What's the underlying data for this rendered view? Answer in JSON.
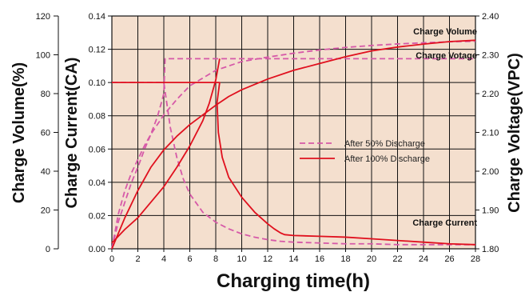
{
  "chart_data": {
    "type": "line",
    "xlabel": "Charging time(h)",
    "x_ticks": [
      "0",
      "2",
      "4",
      "6",
      "8",
      "10",
      "12",
      "14",
      "16",
      "18",
      "20",
      "22",
      "24",
      "26",
      "28"
    ],
    "xlim": [
      0,
      28
    ],
    "y_axes": [
      {
        "label": "Charge Volume(%)",
        "ticks": [
          "0",
          "20",
          "40",
          "60",
          "80",
          "100",
          "120"
        ],
        "lim": [
          0,
          120
        ]
      },
      {
        "label": "Charge Current(CA)",
        "ticks": [
          "0.00",
          "0.02",
          "0.04",
          "0.06",
          "0.08",
          "0.10",
          "0.12",
          "0.14"
        ],
        "lim": [
          0,
          0.14
        ]
      },
      {
        "label": "Charge Voltage(VPC)",
        "ticks": [
          "1.80",
          "1.90",
          "2.00",
          "2.10",
          "2.20",
          "2.30",
          "2.40"
        ],
        "lim": [
          1.8,
          2.4
        ]
      }
    ],
    "annotations": [
      "Charge Volume",
      "Charge Votage",
      "Charge Current"
    ],
    "legend": {
      "placement": "center-right",
      "entries": [
        {
          "label": "After 50% Discharge",
          "style": "dashed",
          "color": "#d659a8"
        },
        {
          "label": "After 100% Discharge",
          "style": "solid",
          "color": "#e0101e"
        }
      ]
    },
    "background_color": "#f4dfce",
    "grid": true,
    "series": [
      {
        "group": "After 50% Discharge",
        "quantity": "Charge Volume",
        "axis": 0,
        "x": [
          0,
          0.5,
          1,
          1.5,
          2,
          2.5,
          3,
          3.5,
          4,
          5,
          6,
          7,
          8,
          10,
          12,
          14,
          16,
          18,
          20,
          22,
          24,
          26,
          28
        ],
        "y": [
          0,
          18,
          30,
          39,
          46,
          53,
          59,
          64,
          69,
          77,
          84,
          88,
          92,
          96.5,
          98.8,
          100.8,
          102.5,
          103.8,
          104.8,
          105.6,
          106.2,
          106.7,
          107
        ]
      },
      {
        "group": "After 50% Discharge",
        "quantity": "Charge Votage",
        "axis": 2,
        "x": [
          0,
          0.5,
          1,
          1.5,
          2,
          2.5,
          3,
          3.5,
          3.8,
          4,
          4.1,
          28
        ],
        "y": [
          1.8,
          1.87,
          1.92,
          1.97,
          2.01,
          2.055,
          2.095,
          2.14,
          2.175,
          2.2,
          2.29,
          2.29
        ]
      },
      {
        "group": "After 50% Discharge",
        "quantity": "Charge Current",
        "axis": 1,
        "x": [
          0,
          4,
          4.5,
          5,
          5.5,
          6,
          7,
          8,
          9,
          10,
          11,
          12,
          13,
          14,
          16,
          18,
          20,
          22,
          24,
          26,
          28
        ],
        "y": [
          0.1,
          0.1,
          0.073,
          0.055,
          0.042,
          0.033,
          0.022,
          0.016,
          0.012,
          0.009,
          0.007,
          0.0055,
          0.0045,
          0.004,
          0.0035,
          0.003,
          0.003,
          0.0025,
          0.0025,
          0.0025,
          0.0025
        ]
      },
      {
        "group": "After 100% Discharge",
        "quantity": "Charge Volume",
        "axis": 0,
        "x": [
          0,
          1,
          2,
          3,
          4,
          5,
          6,
          7,
          8,
          9,
          10,
          12,
          14,
          16,
          18,
          20,
          22,
          24,
          26,
          28
        ],
        "y": [
          0,
          16,
          30,
          42,
          51,
          58,
          64,
          69,
          74,
          78.5,
          82,
          87.5,
          92,
          95.5,
          99,
          102,
          104,
          105.5,
          106.8,
          107.5
        ]
      },
      {
        "group": "After 100% Discharge",
        "quantity": "Charge Votage",
        "axis": 2,
        "x": [
          0,
          1,
          2,
          3,
          4,
          5,
          6,
          7,
          7.5,
          8,
          8.3
        ],
        "y": [
          1.815,
          1.85,
          1.88,
          1.92,
          1.96,
          2.01,
          2.065,
          2.13,
          2.175,
          2.235,
          2.29
        ]
      },
      {
        "group": "After 100% Discharge",
        "quantity": "Charge Current",
        "axis": 1,
        "x": [
          0,
          8.3,
          8.1,
          8.2,
          8.5,
          9,
          10,
          11,
          12,
          12.5,
          13,
          13.3,
          14,
          16,
          18,
          20,
          22,
          24,
          26,
          28
        ],
        "y": [
          0.1,
          0.1,
          0.088,
          0.07,
          0.055,
          0.043,
          0.031,
          0.022,
          0.015,
          0.012,
          0.0095,
          0.0085,
          0.008,
          0.0075,
          0.007,
          0.006,
          0.005,
          0.004,
          0.003,
          0.0025
        ]
      }
    ]
  }
}
